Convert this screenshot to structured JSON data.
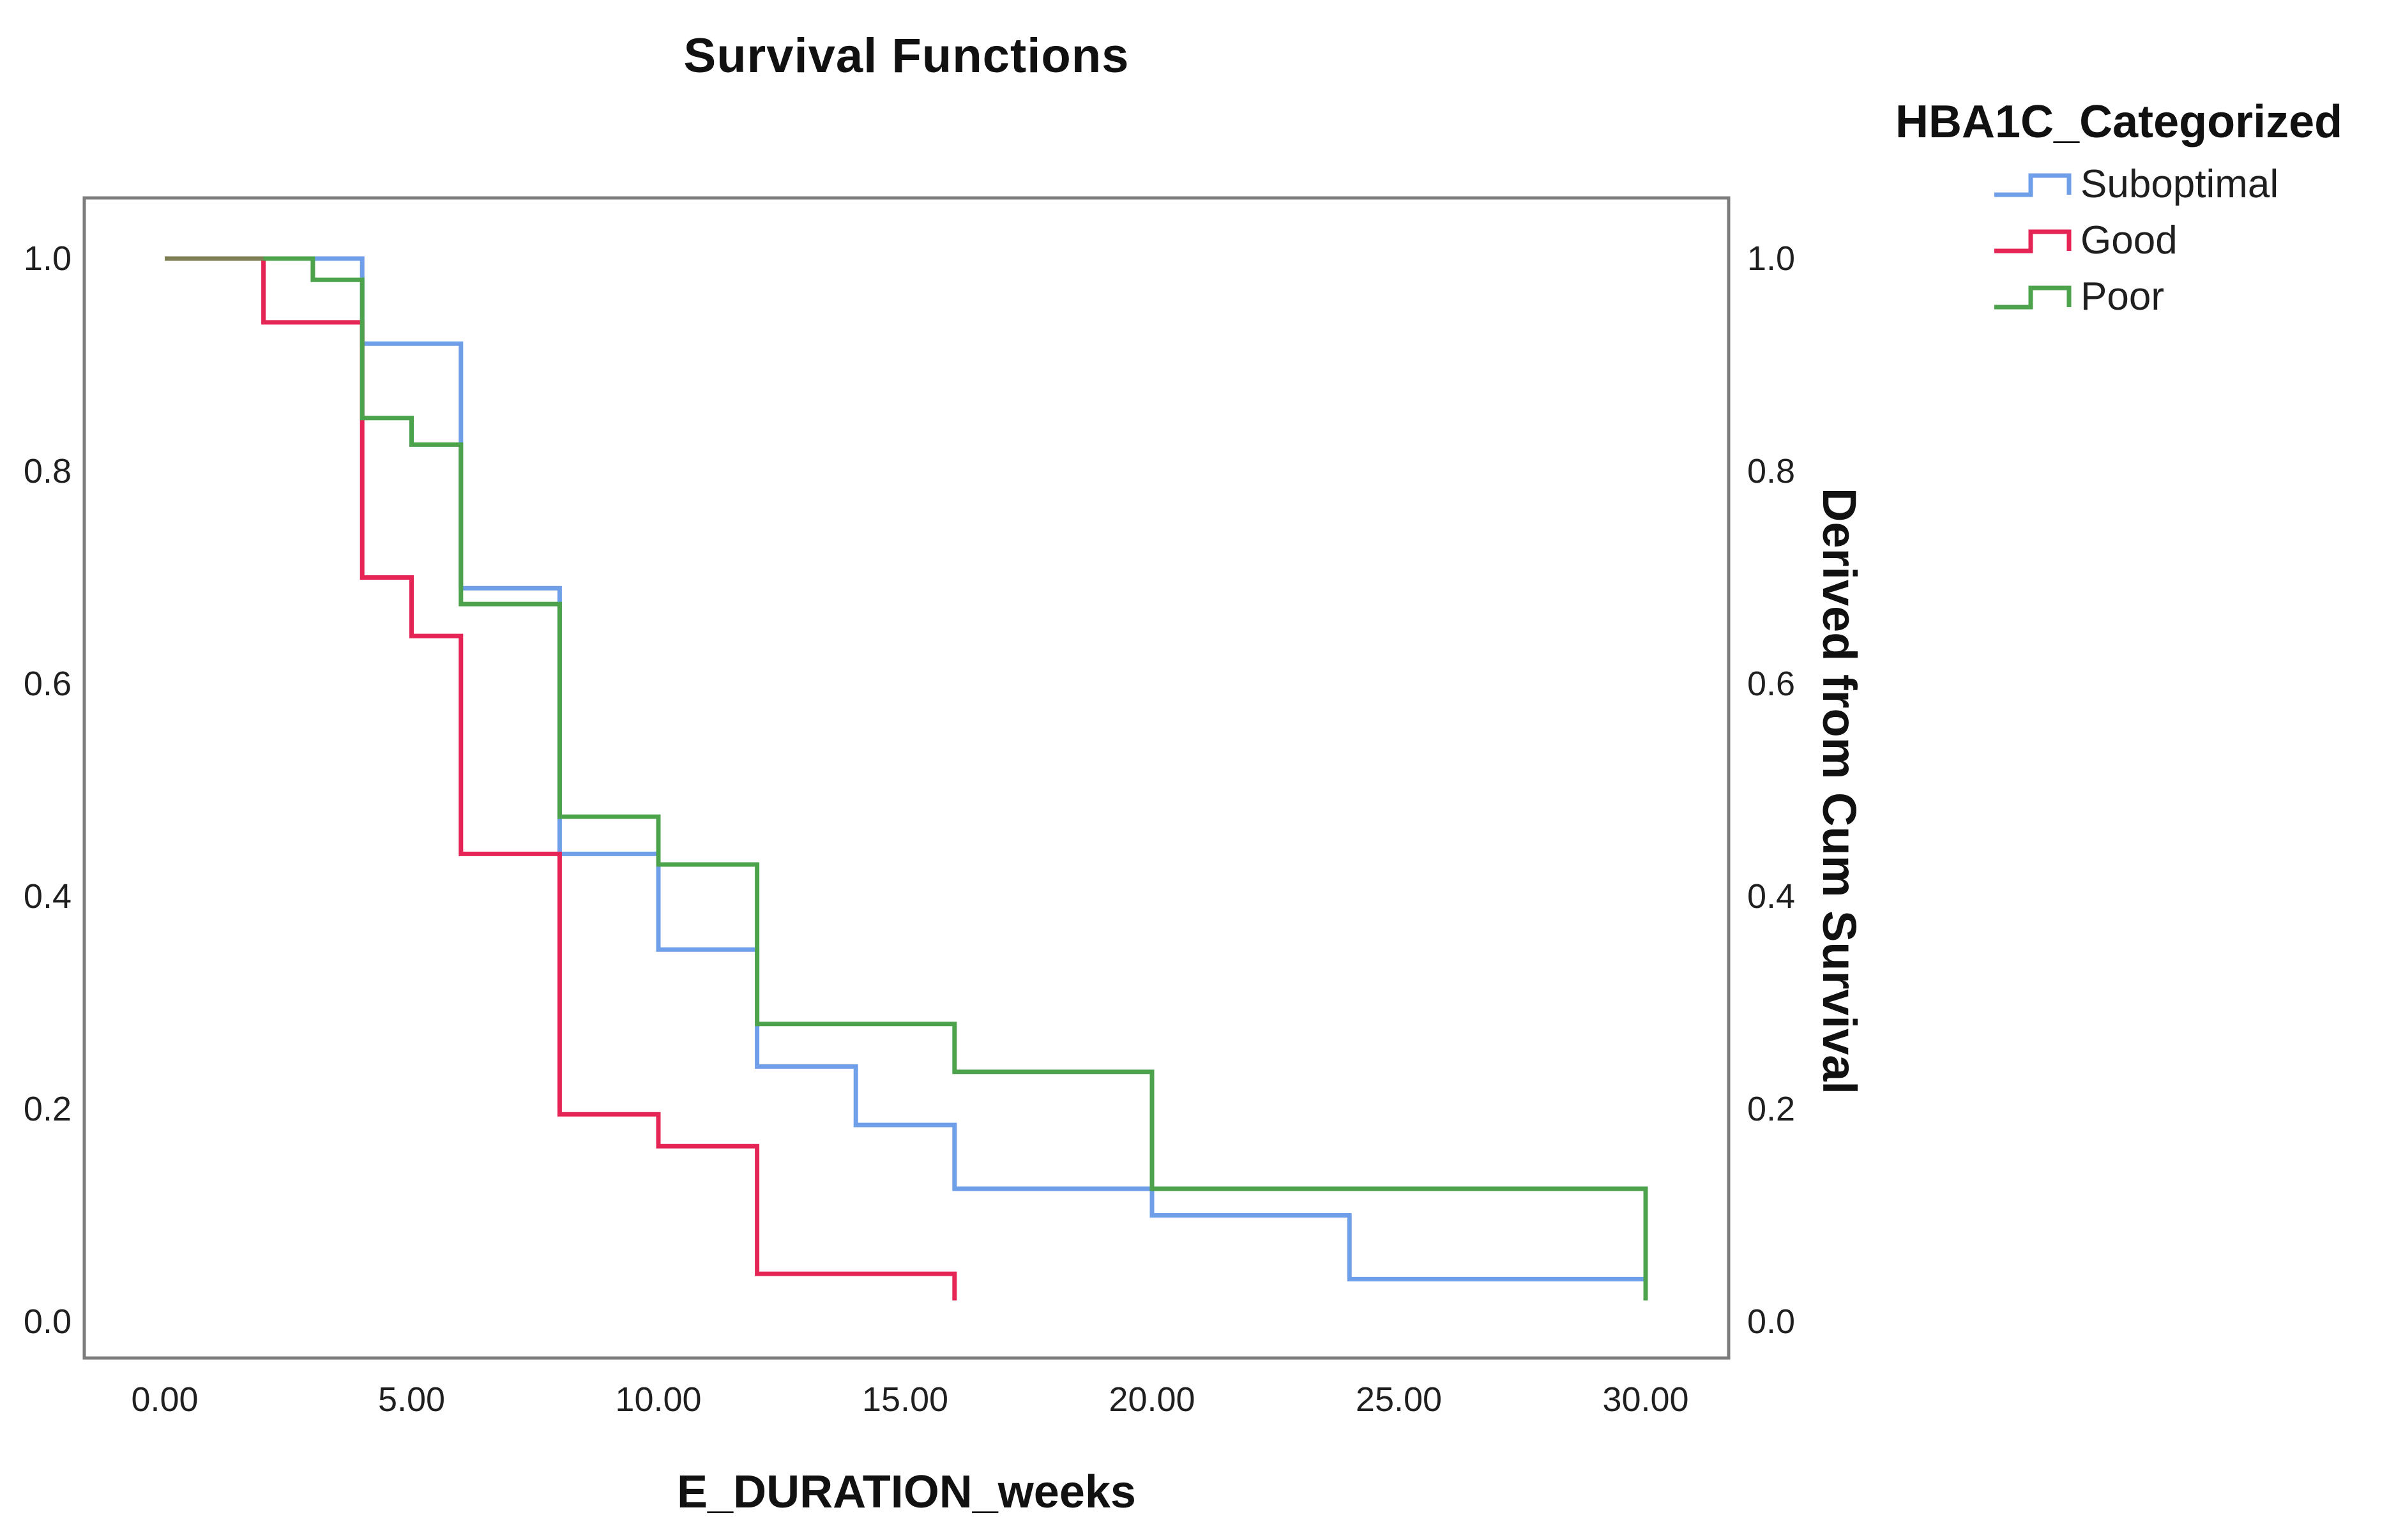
{
  "title": "Survival Functions",
  "legend": {
    "title": "HBA1C_Categorized",
    "items": [
      {
        "label": "Suboptimal",
        "color": "#6F9FE8"
      },
      {
        "label": "Good",
        "color": "#E52556"
      },
      {
        "label": "Poor",
        "color": "#4CA34C"
      }
    ]
  },
  "axes": {
    "x": {
      "title": "E_DURATION_weeks",
      "tick_labels": [
        "0.00",
        "5.00",
        "10.00",
        "15.00",
        "20.00",
        "25.00",
        "30.00"
      ],
      "tick_values": [
        0,
        5,
        10,
        15,
        20,
        25,
        30
      ],
      "min": 0,
      "max": 30
    },
    "y": {
      "title": "Derived from Cum Survival",
      "tick_labels": [
        "1.0",
        "0.8",
        "0.6",
        "0.4",
        "0.2",
        "0.0"
      ],
      "tick_values": [
        1.0,
        0.8,
        0.6,
        0.4,
        0.2,
        0.0
      ],
      "min": 0.0,
      "max": 1.0,
      "labels_on_both_sides": true
    }
  },
  "chart_data": {
    "type": "line",
    "subtype": "kaplan-meier-step",
    "title": "Survival Functions",
    "xlabel": "E_DURATION_weeks",
    "ylabel": "Derived from Cum Survival",
    "xlim": [
      0,
      30
    ],
    "ylim": [
      0.0,
      1.0
    ],
    "grid": false,
    "legend_position": "top-right",
    "series": [
      {
        "name": "Suboptimal",
        "color": "#6F9FE8",
        "steps": [
          [
            0,
            1.0
          ],
          [
            4,
            0.92
          ],
          [
            6,
            0.69
          ],
          [
            8,
            0.44
          ],
          [
            10,
            0.35
          ],
          [
            12,
            0.24
          ],
          [
            14,
            0.185
          ],
          [
            16,
            0.125
          ],
          [
            20,
            0.1
          ],
          [
            24,
            0.04
          ],
          [
            30,
            0.04
          ]
        ]
      },
      {
        "name": "Good",
        "color": "#E52556",
        "steps": [
          [
            0,
            1.0
          ],
          [
            2,
            0.94
          ],
          [
            4,
            0.7
          ],
          [
            5,
            0.645
          ],
          [
            6,
            0.44
          ],
          [
            8,
            0.195
          ],
          [
            10,
            0.165
          ],
          [
            12,
            0.045
          ],
          [
            16,
            0.02
          ]
        ]
      },
      {
        "name": "Poor",
        "color": "#4CA34C",
        "steps": [
          [
            0,
            1.0
          ],
          [
            3,
            0.98
          ],
          [
            4,
            0.85
          ],
          [
            5,
            0.825
          ],
          [
            6,
            0.675
          ],
          [
            8,
            0.475
          ],
          [
            10,
            0.43
          ],
          [
            12,
            0.28
          ],
          [
            16,
            0.235
          ],
          [
            20,
            0.125
          ],
          [
            30,
            0.02
          ]
        ]
      }
    ],
    "overlap_segment": {
      "color": "#7E7E55",
      "from_x": 0,
      "to_x": 2,
      "y": 1.0,
      "note": "all three curves overlap at survival 1.0 until the first event"
    }
  },
  "style": {
    "frame_color": "#7D7D7D",
    "text_color": "#1F1F1F",
    "curve_width": 7
  }
}
